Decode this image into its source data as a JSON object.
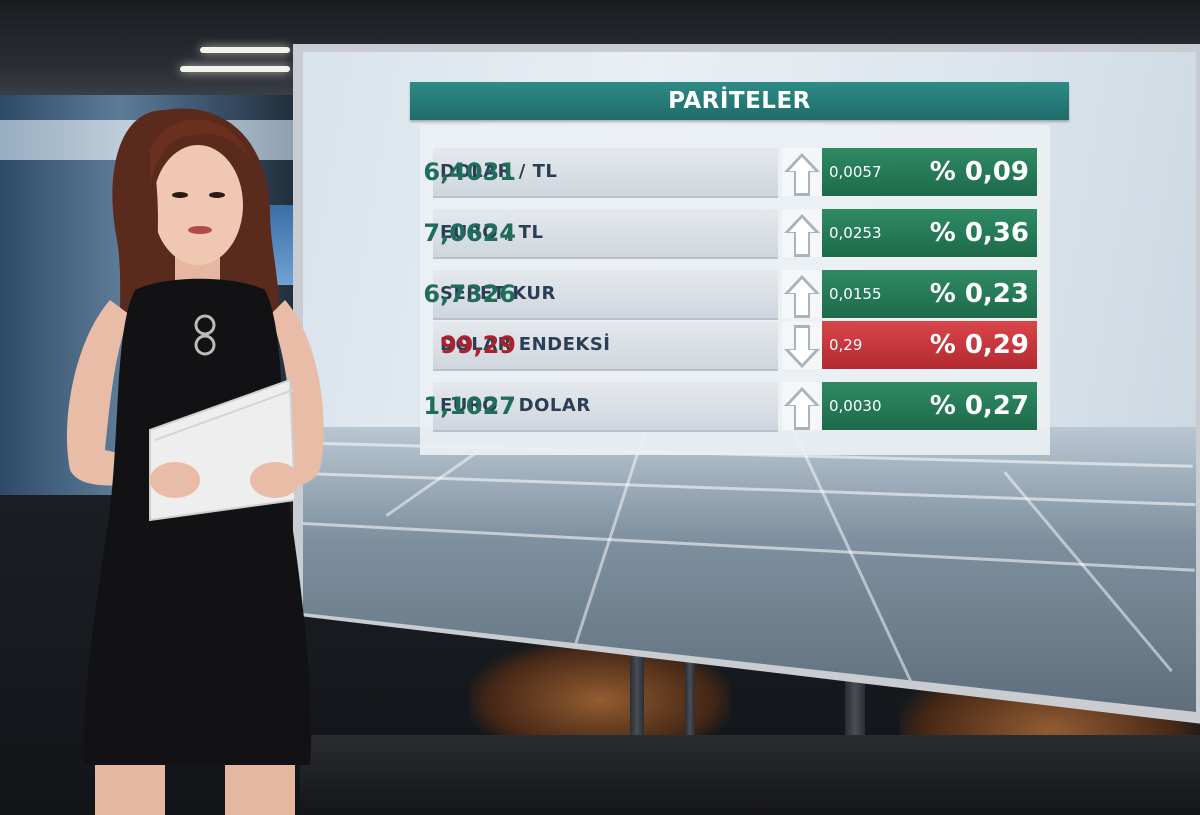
{
  "table": {
    "title": "PARİTELER",
    "rows": [
      {
        "name": "DOLAR / TL",
        "value": "6,4031",
        "direction": "up",
        "change": "0,0057",
        "percent": "% 0,09"
      },
      {
        "name": "EURO / TL",
        "value": "7,0624",
        "direction": "up",
        "change": "0,0253",
        "percent": "% 0,36"
      },
      {
        "name": "SEPET KUR",
        "value": "6,7326",
        "direction": "up",
        "change": "0,0155",
        "percent": "% 0,23"
      },
      {
        "name": "DOLAR ENDEKSİ",
        "value": "99,29",
        "direction": "down",
        "change": "0,29",
        "percent": "% 0,29"
      },
      {
        "name": "EURO / DOLAR",
        "value": "1,1027",
        "direction": "up",
        "change": "0,0030",
        "percent": "% 0,27"
      }
    ]
  },
  "colors": {
    "header": "#1f6c6a",
    "up": "#1d6a4b",
    "down": "#b32a30",
    "up_value": "#1f6d5c",
    "down_value": "#b0202c"
  },
  "icons": {
    "up": "arrow-up-icon",
    "down": "arrow-down-icon"
  }
}
